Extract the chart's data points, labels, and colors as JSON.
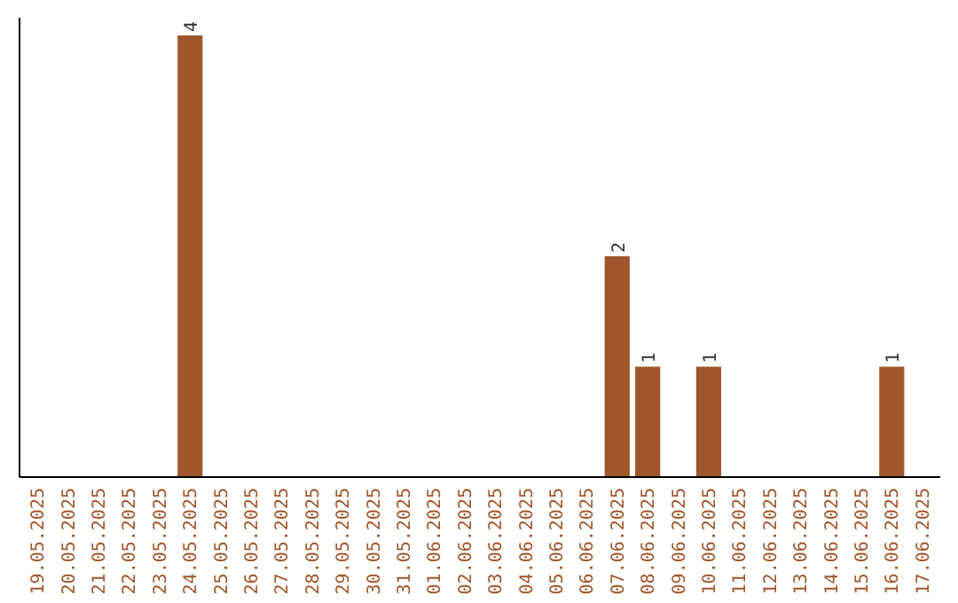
{
  "chart_data": {
    "type": "bar",
    "categories": [
      "19.05.2025",
      "20.05.2025",
      "21.05.2025",
      "22.05.2025",
      "23.05.2025",
      "24.05.2025",
      "25.05.2025",
      "26.05.2025",
      "27.05.2025",
      "28.05.2025",
      "29.05.2025",
      "30.05.2025",
      "31.05.2025",
      "01.06.2025",
      "02.06.2025",
      "03.06.2025",
      "04.06.2025",
      "05.06.2025",
      "06.06.2025",
      "07.06.2025",
      "08.06.2025",
      "09.06.2025",
      "10.06.2025",
      "11.06.2025",
      "12.06.2025",
      "13.06.2025",
      "14.06.2025",
      "15.06.2025",
      "16.06.2025",
      "17.06.2025"
    ],
    "values": [
      0,
      0,
      0,
      0,
      0,
      4,
      0,
      0,
      0,
      0,
      0,
      0,
      0,
      0,
      0,
      0,
      0,
      0,
      0,
      2,
      1,
      0,
      1,
      0,
      0,
      0,
      0,
      0,
      1,
      0
    ],
    "value_labels": [
      null,
      null,
      null,
      null,
      null,
      "4",
      null,
      null,
      null,
      null,
      null,
      null,
      null,
      null,
      null,
      null,
      null,
      null,
      null,
      "2",
      "1",
      null,
      "1",
      null,
      null,
      null,
      null,
      null,
      "1",
      null
    ],
    "color": "#a0562c"
  }
}
